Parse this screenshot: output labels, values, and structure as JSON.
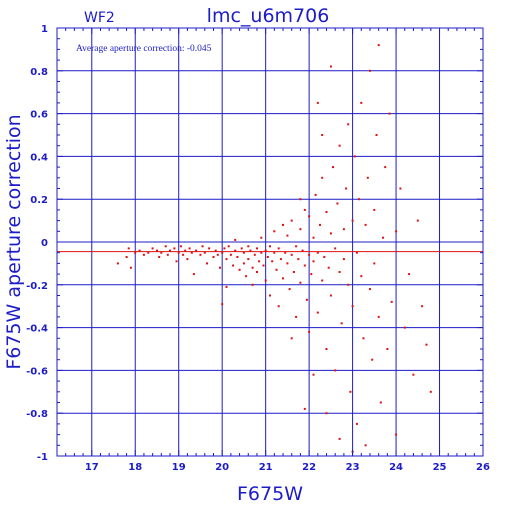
{
  "panel_label": "WF2",
  "chart_data": {
    "type": "scatter",
    "title": "lmc_u6m706",
    "xlabel": "F675W",
    "ylabel": "F675W aperture correction",
    "annotation": "Average aperture correction: -0.045",
    "xlim": [
      16.2,
      26
    ],
    "ylim": [
      -1,
      1
    ],
    "xticks": [
      "17",
      "18",
      "19",
      "20",
      "21",
      "22",
      "23",
      "24",
      "25",
      "26"
    ],
    "yticks": [
      "-1",
      "-0.8",
      "-0.6",
      "-0.4",
      "-0.2",
      "0",
      "0.2",
      "0.4",
      "0.6",
      "0.8",
      "1"
    ],
    "grid": true,
    "reference_line": {
      "y": -0.045,
      "color": "#e01010"
    },
    "colors": {
      "axes": "#1c1cc8",
      "points": "#e01010",
      "background": "#ffffff"
    },
    "point_count_description": "dense cloud of measurements",
    "points": [
      [
        17.6,
        -0.1
      ],
      [
        17.8,
        -0.07
      ],
      [
        17.85,
        -0.03
      ],
      [
        17.9,
        -0.12
      ],
      [
        18.0,
        -0.05
      ],
      [
        18.1,
        -0.04
      ],
      [
        18.2,
        -0.06
      ],
      [
        18.3,
        -0.05
      ],
      [
        18.4,
        -0.03
      ],
      [
        18.5,
        -0.04
      ],
      [
        18.55,
        -0.07
      ],
      [
        18.6,
        -0.05
      ],
      [
        18.7,
        -0.02
      ],
      [
        18.75,
        -0.06
      ],
      [
        18.8,
        -0.04
      ],
      [
        18.9,
        -0.03
      ],
      [
        18.95,
        -0.09
      ],
      [
        19.0,
        -0.05
      ],
      [
        19.05,
        -0.02
      ],
      [
        19.1,
        -0.06
      ],
      [
        19.15,
        -0.04
      ],
      [
        19.2,
        -0.08
      ],
      [
        19.25,
        -0.03
      ],
      [
        19.3,
        -0.05
      ],
      [
        19.35,
        -0.15
      ],
      [
        19.4,
        -0.04
      ],
      [
        19.5,
        -0.06
      ],
      [
        19.55,
        -0.02
      ],
      [
        19.6,
        -0.05
      ],
      [
        19.65,
        -0.1
      ],
      [
        19.7,
        -0.03
      ],
      [
        19.8,
        -0.07
      ],
      [
        19.85,
        -0.04
      ],
      [
        19.9,
        -0.06
      ],
      [
        19.95,
        -0.12
      ],
      [
        20.0,
        -0.05
      ],
      [
        20.0,
        -0.29
      ],
      [
        20.05,
        -0.03
      ],
      [
        20.1,
        -0.08
      ],
      [
        20.1,
        -0.21
      ],
      [
        20.15,
        -0.02
      ],
      [
        20.2,
        -0.06
      ],
      [
        20.25,
        -0.11
      ],
      [
        20.3,
        -0.04
      ],
      [
        20.3,
        0.01
      ],
      [
        20.35,
        -0.07
      ],
      [
        20.4,
        -0.13
      ],
      [
        20.45,
        -0.03
      ],
      [
        20.5,
        -0.05
      ],
      [
        20.5,
        -0.1
      ],
      [
        20.55,
        -0.16
      ],
      [
        20.6,
        -0.02
      ],
      [
        20.6,
        -0.08
      ],
      [
        20.65,
        -0.04
      ],
      [
        20.7,
        -0.12
      ],
      [
        20.7,
        -0.2
      ],
      [
        20.75,
        -0.06
      ],
      [
        20.8,
        -0.03
      ],
      [
        20.8,
        -0.14
      ],
      [
        20.85,
        -0.09
      ],
      [
        20.9,
        -0.05
      ],
      [
        20.9,
        0.02
      ],
      [
        20.95,
        -0.11
      ],
      [
        21.0,
        -0.04
      ],
      [
        21.0,
        -0.18
      ],
      [
        21.05,
        -0.07
      ],
      [
        21.1,
        -0.02
      ],
      [
        21.1,
        -0.25
      ],
      [
        21.15,
        -0.09
      ],
      [
        21.2,
        -0.05
      ],
      [
        21.2,
        0.05
      ],
      [
        21.25,
        -0.13
      ],
      [
        21.3,
        -0.03
      ],
      [
        21.3,
        -0.3
      ],
      [
        21.35,
        -0.08
      ],
      [
        21.4,
        0.08
      ],
      [
        21.4,
        -0.17
      ],
      [
        21.45,
        -0.05
      ],
      [
        21.5,
        -0.1
      ],
      [
        21.5,
        0.03
      ],
      [
        21.55,
        -0.22
      ],
      [
        21.6,
        -0.06
      ],
      [
        21.6,
        0.1
      ],
      [
        21.65,
        -0.14
      ],
      [
        21.7,
        -0.02
      ],
      [
        21.7,
        -0.35
      ],
      [
        21.75,
        -0.08
      ],
      [
        21.8,
        0.06
      ],
      [
        21.8,
        -0.19
      ],
      [
        21.85,
        -0.04
      ],
      [
        21.9,
        -0.11
      ],
      [
        21.9,
        0.15
      ],
      [
        21.95,
        -0.27
      ],
      [
        22.0,
        -0.06
      ],
      [
        22.0,
        0.12
      ],
      [
        22.0,
        -0.42
      ],
      [
        22.05,
        -0.15
      ],
      [
        22.1,
        0.02
      ],
      [
        22.1,
        -0.09
      ],
      [
        22.15,
        0.22
      ],
      [
        22.2,
        -0.05
      ],
      [
        22.2,
        -0.33
      ],
      [
        22.25,
        0.08
      ],
      [
        22.3,
        -0.18
      ],
      [
        22.3,
        0.3
      ],
      [
        22.35,
        -0.07
      ],
      [
        22.4,
        -0.5
      ],
      [
        22.4,
        0.14
      ],
      [
        22.45,
        -0.12
      ],
      [
        22.5,
        0.04
      ],
      [
        22.5,
        -0.25
      ],
      [
        22.55,
        0.35
      ],
      [
        22.6,
        -0.03
      ],
      [
        22.6,
        -0.6
      ],
      [
        22.65,
        0.18
      ],
      [
        22.7,
        -0.14
      ],
      [
        22.7,
        0.45
      ],
      [
        22.75,
        -0.38
      ],
      [
        22.8,
        0.06
      ],
      [
        22.8,
        -0.08
      ],
      [
        22.85,
        0.25
      ],
      [
        22.9,
        -0.2
      ],
      [
        22.9,
        0.55
      ],
      [
        22.95,
        -0.7
      ],
      [
        23.0,
        0.1
      ],
      [
        23.0,
        -0.3
      ],
      [
        23.05,
        0.4
      ],
      [
        23.1,
        -0.05
      ],
      [
        23.1,
        -0.85
      ],
      [
        23.15,
        0.2
      ],
      [
        23.2,
        -0.16
      ],
      [
        23.2,
        0.65
      ],
      [
        23.25,
        -0.45
      ],
      [
        23.3,
        0.08
      ],
      [
        23.3,
        -0.95
      ],
      [
        23.35,
        0.3
      ],
      [
        23.4,
        -0.22
      ],
      [
        23.4,
        0.8
      ],
      [
        23.45,
        -0.55
      ],
      [
        23.5,
        0.15
      ],
      [
        23.5,
        -0.1
      ],
      [
        23.55,
        0.5
      ],
      [
        23.6,
        -0.35
      ],
      [
        23.6,
        0.92
      ],
      [
        23.65,
        -0.75
      ],
      [
        23.7,
        0.02
      ],
      [
        23.75,
        0.35
      ],
      [
        23.8,
        -0.5
      ],
      [
        23.85,
        0.6
      ],
      [
        23.9,
        -0.28
      ],
      [
        24.0,
        0.05
      ],
      [
        24.0,
        -0.9
      ],
      [
        24.1,
        0.25
      ],
      [
        24.2,
        -0.4
      ],
      [
        24.3,
        -0.15
      ],
      [
        24.4,
        -0.62
      ],
      [
        24.5,
        0.1
      ],
      [
        24.6,
        -0.3
      ],
      [
        24.7,
        -0.48
      ],
      [
        24.8,
        -0.7
      ],
      [
        22.5,
        0.82
      ],
      [
        22.2,
        0.65
      ],
      [
        21.9,
        -0.78
      ],
      [
        22.1,
        -0.62
      ],
      [
        22.4,
        -0.8
      ],
      [
        22.7,
        -0.92
      ],
      [
        23.0,
        -0.98
      ],
      [
        22.3,
        0.5
      ],
      [
        21.8,
        0.2
      ],
      [
        21.6,
        -0.45
      ]
    ]
  }
}
